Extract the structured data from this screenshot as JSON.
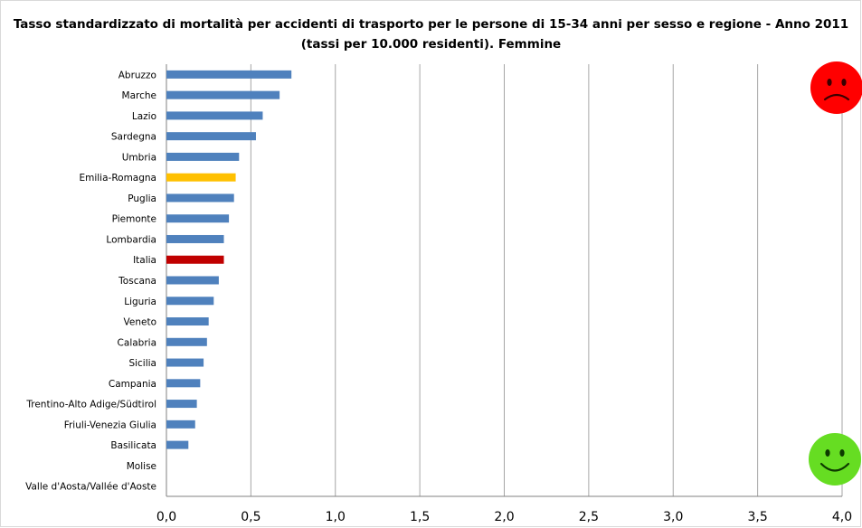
{
  "chart_data": {
    "type": "bar",
    "orientation": "horizontal",
    "title": "Tasso standardizzato di mortalità per accidenti di trasporto per le persone di 15-34 anni per sesso e regione - Anno 2011",
    "subtitle": "(tassi per 10.000 residenti). Femmine",
    "categories": [
      "Abruzzo",
      "Marche",
      "Lazio",
      "Sardegna",
      "Umbria",
      "Emilia-Romagna",
      "Puglia",
      "Piemonte",
      "Lombardia",
      "Italia",
      "Toscana",
      "Liguria",
      "Veneto",
      "Calabria",
      "Sicilia",
      "Campania",
      "Trentino-Alto Adige/Südtirol",
      "Friuli-Venezia Giulia",
      "Basilicata",
      "Molise",
      "Valle d'Aosta/Vallée d'Aoste"
    ],
    "values": [
      0.74,
      0.67,
      0.57,
      0.53,
      0.43,
      0.41,
      0.4,
      0.37,
      0.34,
      0.34,
      0.31,
      0.28,
      0.25,
      0.24,
      0.22,
      0.2,
      0.18,
      0.17,
      0.13,
      0.0,
      0.0
    ],
    "highlight_colors": {
      "Emilia-Romagna": "#ffc000",
      "Italia": "#c00000"
    },
    "bar_color": "#4f81bd",
    "xlim": [
      0,
      4
    ],
    "xticks": [
      "0,0",
      "0,5",
      "1,0",
      "1,5",
      "2,0",
      "2,5",
      "3,0",
      "3,5",
      "4,0"
    ],
    "xtick_values": [
      0,
      0.5,
      1.0,
      1.5,
      2.0,
      2.5,
      3.0,
      3.5,
      4.0
    ],
    "grid": "vertical",
    "icons": [
      "sad-face-icon",
      "happy-face-icon"
    ]
  },
  "colors": {
    "sad_face": "#ff0000",
    "happy_face": "#66dd22",
    "gridline": "#a6a6a6",
    "axis": "#808080"
  }
}
